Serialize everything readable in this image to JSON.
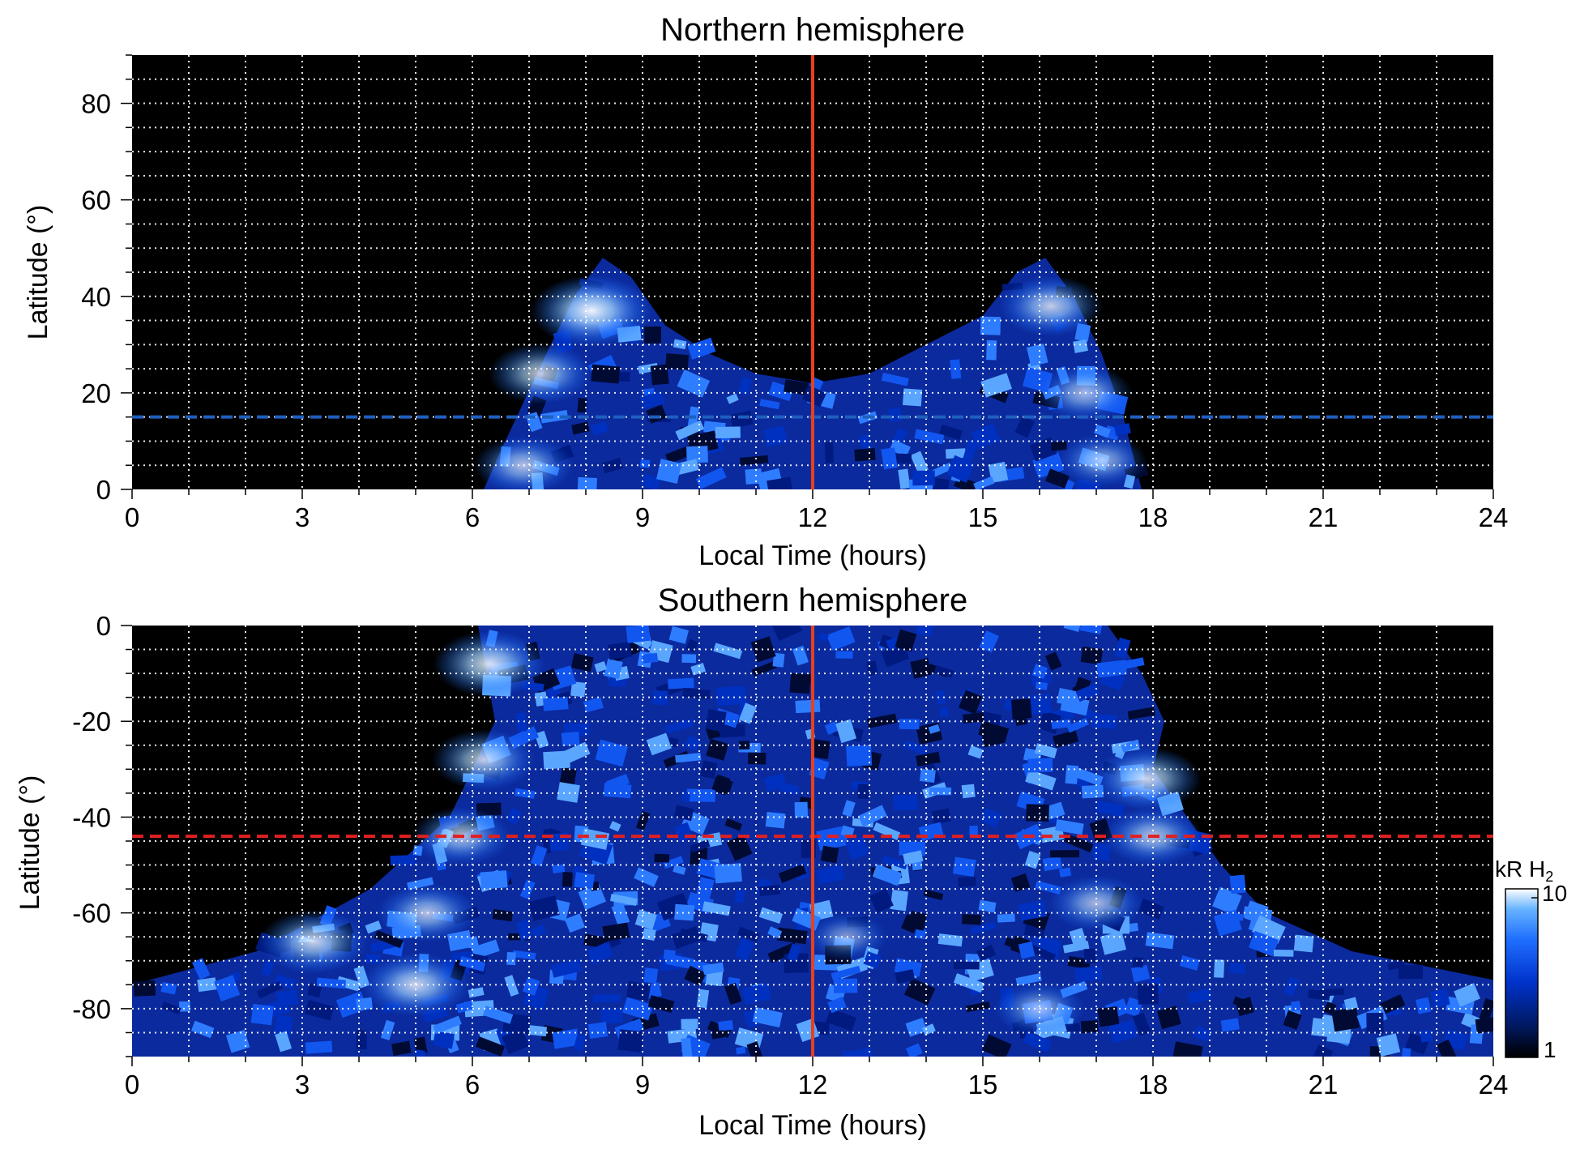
{
  "chart_data": [
    {
      "type": "heatmap",
      "title": "Northern hemisphere",
      "xlabel": "Local Time (hours)",
      "ylabel": "Latitude (°)",
      "xlim": [
        0,
        24
      ],
      "ylim": [
        0,
        90
      ],
      "xticks": [
        "0",
        "3",
        "6",
        "9",
        "12",
        "15",
        "18",
        "21",
        "24"
      ],
      "yticks": [
        "0",
        "20",
        "40",
        "60",
        "80"
      ],
      "grid": "dotted white, every 1 hour and every 5 degrees",
      "background_color": "#000000",
      "colormap": [
        "#000000",
        "#001a66",
        "#0033cc",
        "#1f6fff",
        "#66b3ff",
        "#ffffff"
      ],
      "vline": {
        "x": 12,
        "color": "#e8401c",
        "style": "solid"
      },
      "hline": {
        "y": 15,
        "color": "#1f5fbf",
        "style": "dashed"
      },
      "emission_region": {
        "description_values": "approximate outline of emission (local time hours vs latitude degrees)",
        "outline": [
          [
            6.2,
            0
          ],
          [
            6.5,
            8
          ],
          [
            6.9,
            18
          ],
          [
            7.3,
            28
          ],
          [
            7.8,
            40
          ],
          [
            8.3,
            48
          ],
          [
            8.8,
            44
          ],
          [
            9.4,
            34
          ],
          [
            10.2,
            28
          ],
          [
            11,
            24
          ],
          [
            12,
            22
          ],
          [
            13,
            24
          ],
          [
            14,
            30
          ],
          [
            15,
            36
          ],
          [
            15.6,
            45
          ],
          [
            16.1,
            48
          ],
          [
            16.6,
            40
          ],
          [
            17.1,
            28
          ],
          [
            17.5,
            14
          ],
          [
            17.8,
            0
          ]
        ],
        "hotspots": [
          {
            "x": 8.1,
            "y": 37,
            "level": 1.0
          },
          {
            "x": 7.2,
            "y": 24,
            "level": 0.8
          },
          {
            "x": 6.9,
            "y": 5,
            "level": 0.75
          },
          {
            "x": 16.2,
            "y": 38,
            "level": 0.8
          },
          {
            "x": 16.8,
            "y": 20,
            "level": 0.7
          },
          {
            "x": 17.1,
            "y": 6,
            "level": 0.65
          }
        ]
      }
    },
    {
      "type": "heatmap",
      "title": "Southern hemisphere",
      "xlabel": "Local Time (hours)",
      "ylabel": "Latitude (°)",
      "xlim": [
        0,
        24
      ],
      "ylim": [
        -90,
        0
      ],
      "xticks": [
        "0",
        "3",
        "6",
        "9",
        "12",
        "15",
        "18",
        "21",
        "24"
      ],
      "yticks": [
        "0",
        "-20",
        "-40",
        "-60",
        "-80"
      ],
      "grid": "dotted white, every 1 hour and every 5 degrees",
      "background_color": "#000000",
      "vline": {
        "x": 12,
        "color": "#e8401c",
        "style": "solid"
      },
      "hline": {
        "y": -44,
        "color": "#e02020",
        "style": "dashed"
      },
      "emission_region": {
        "description_values": "approximate outline of emission (local time hours vs latitude degrees)",
        "outline": [
          [
            6.1,
            0
          ],
          [
            6.4,
            -20
          ],
          [
            5.6,
            -40
          ],
          [
            4.2,
            -55
          ],
          [
            2.2,
            -68
          ],
          [
            0,
            -75
          ],
          [
            0,
            -90
          ],
          [
            24,
            -90
          ],
          [
            24,
            -74
          ],
          [
            21.5,
            -68
          ],
          [
            20,
            -60
          ],
          [
            19.2,
            -50
          ],
          [
            18.6,
            -40
          ],
          [
            18.0,
            -30
          ],
          [
            18.2,
            -20
          ],
          [
            17.8,
            -10
          ],
          [
            17.2,
            0
          ]
        ],
        "hotspots": [
          {
            "x": 6.3,
            "y": -8,
            "level": 0.9
          },
          {
            "x": 6.2,
            "y": -28,
            "level": 0.8
          },
          {
            "x": 5.8,
            "y": -44,
            "level": 0.75
          },
          {
            "x": 5.2,
            "y": -60,
            "level": 0.75
          },
          {
            "x": 3.2,
            "y": -66,
            "level": 0.85
          },
          {
            "x": 5.0,
            "y": -75,
            "level": 0.85
          },
          {
            "x": 17.9,
            "y": -32,
            "level": 0.85
          },
          {
            "x": 18.0,
            "y": -44,
            "level": 0.75
          },
          {
            "x": 17.0,
            "y": -58,
            "level": 0.7
          },
          {
            "x": 16.0,
            "y": -80,
            "level": 0.65
          },
          {
            "x": 12.6,
            "y": -65,
            "level": 0.55
          }
        ]
      }
    }
  ],
  "colorbar": {
    "label_main": "kR H",
    "label_sub": "2",
    "scale": "log",
    "min_label": "1",
    "max_label": "10",
    "min": 1,
    "max": 10
  }
}
